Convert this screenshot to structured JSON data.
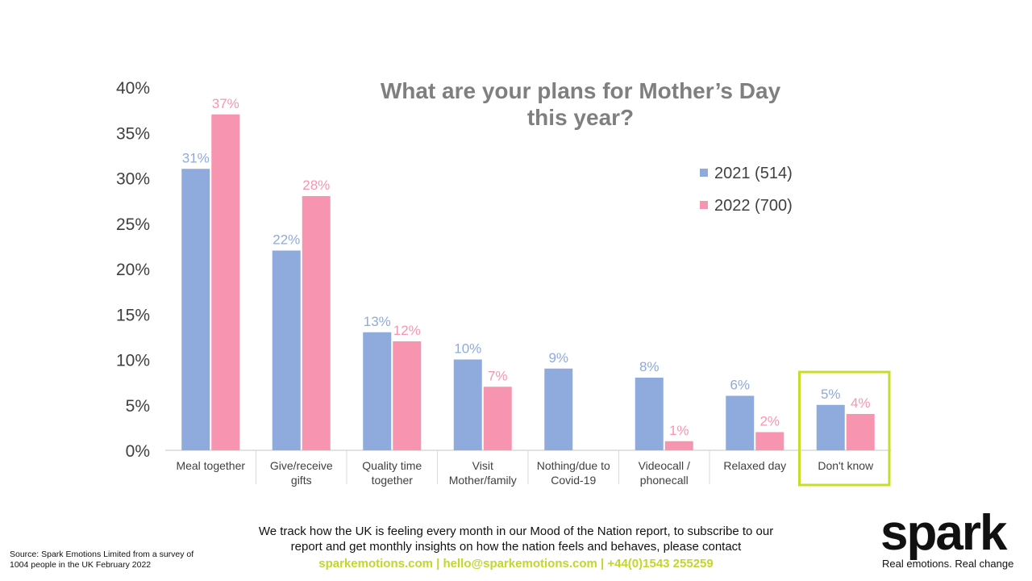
{
  "chart_data": {
    "type": "bar",
    "title_lines": [
      "What are your plans for Mother’s Day",
      "this year?"
    ],
    "categories": [
      [
        "Meal together"
      ],
      [
        "Give/receive",
        "gifts"
      ],
      [
        "Quality time",
        "together"
      ],
      [
        "Visit",
        "Mother/family"
      ],
      [
        "Nothing/due to",
        "Covid-19"
      ],
      [
        "Videocall /",
        "phonecall"
      ],
      [
        "Relaxed day"
      ],
      [
        "Don't know"
      ]
    ],
    "series": [
      {
        "name": "2021 (514)",
        "color": "#8faadc",
        "values": [
          31,
          22,
          13,
          10,
          9,
          8,
          6,
          5
        ],
        "labels": [
          "31%",
          "22%",
          "13%",
          "10%",
          "9%",
          "8%",
          "6%",
          "5%"
        ]
      },
      {
        "name": "2022 (700)",
        "color": "#f795b0",
        "values": [
          37,
          28,
          12,
          7,
          null,
          1,
          2,
          4
        ],
        "labels": [
          "37%",
          "28%",
          "12%",
          "7%",
          "",
          "1%",
          "2%",
          "4%"
        ]
      }
    ],
    "ylim": [
      0,
      40
    ],
    "yticks": [
      "0%",
      "5%",
      "10%",
      "15%",
      "20%",
      "25%",
      "30%",
      "35%",
      "40%"
    ],
    "highlight_category": "Don't know",
    "highlight_color": "#c8dc2a",
    "legend_position": "top-right"
  },
  "footer": {
    "line1": "We track how the UK is feeling every month in our Mood of the Nation report, to subscribe to our",
    "line2": "report and get monthly insights on how the nation feels and behaves, please contact",
    "contact": "sparkemotions.com | hello@sparkemotions.com | +44(0)1543 255259"
  },
  "source": {
    "line1": "Source: Spark Emotions Limited from a survey of",
    "line2": "1004 people in the UK February 2022"
  },
  "brand": {
    "logo": "spark",
    "tagline": "Real emotions. Real change"
  }
}
